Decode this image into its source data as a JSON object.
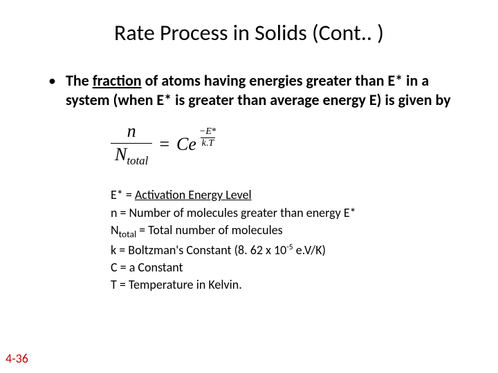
{
  "title": "Rate Process in Solids (Cont.. )",
  "bullet": {
    "lead": "The ",
    "underlined": "fraction",
    "rest": " of atoms having energies greater than E* in a system (when E* is greater than average energy E) is given by"
  },
  "equation": {
    "lhs_num": "n",
    "lhs_den_N": "N",
    "lhs_den_sub": "total",
    "eq": "=",
    "rhs_C": "C",
    "rhs_e": "e",
    "exp_num_minus": "−",
    "exp_num_E": "E",
    "exp_num_star": "*",
    "exp_den_k": "k",
    "exp_den_dot": ".",
    "exp_den_T": "T"
  },
  "defs": {
    "d1_pre": "E* = ",
    "d1_under": "Activation Energy Level",
    "d2": "n = Number of molecules greater than energy E*",
    "d3_pre": "N",
    "d3_sub": "total",
    "d3_rest": " = Total number of molecules",
    "d4_pre": "k = Boltzman's Constant (8. 62 x 10",
    "d4_sup": "-5",
    "d4_post": " e.V/K)",
    "d5": "C = a Constant",
    "d6": "T = Temperature in Kelvin."
  },
  "slide_number": "4-36",
  "colors": {
    "text": "#000000",
    "slide_number": "#c00000",
    "background": "#ffffff"
  }
}
